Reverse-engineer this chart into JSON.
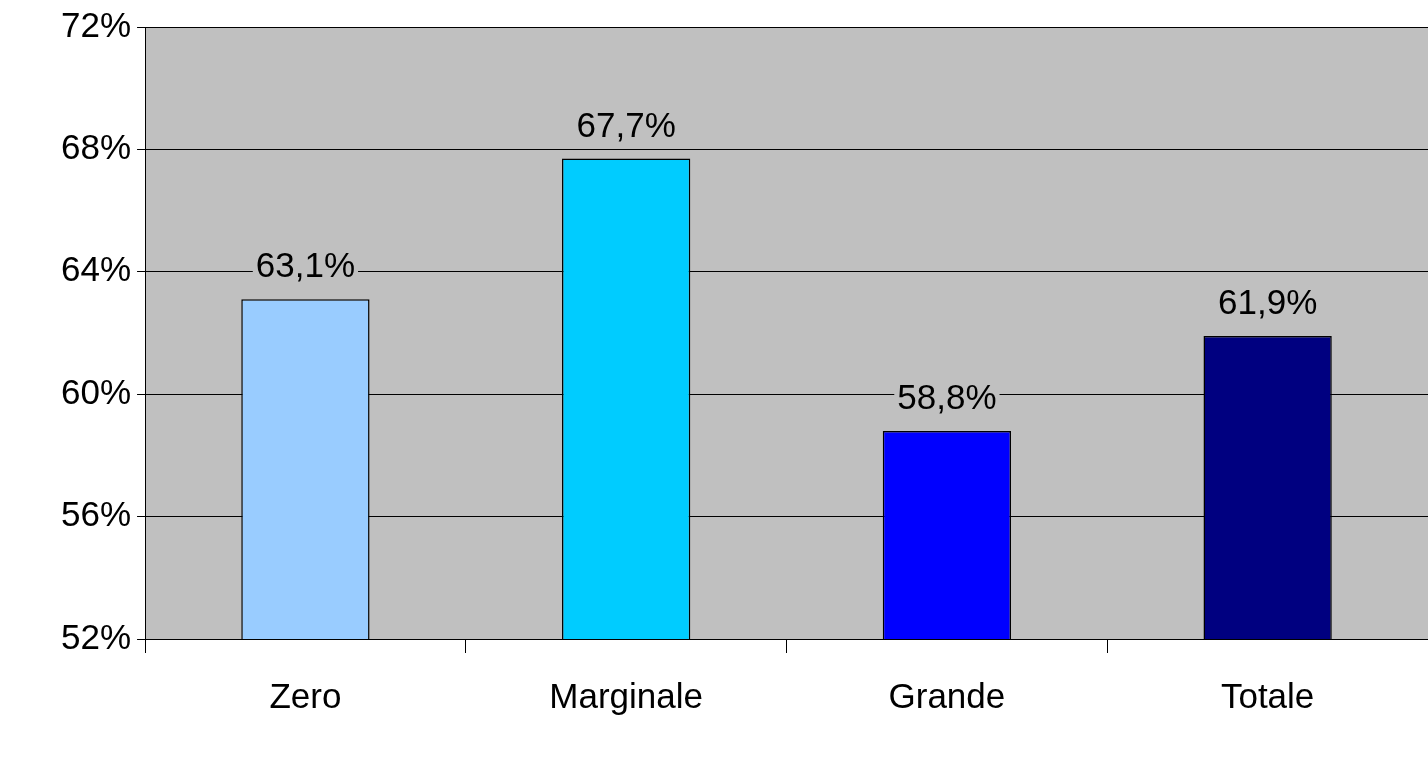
{
  "chart_data": {
    "type": "bar",
    "categories": [
      "Zero",
      "Marginale",
      "Grande",
      "Totale"
    ],
    "values": [
      63.1,
      67.7,
      58.8,
      61.9
    ],
    "colors": [
      "#99ccff",
      "#00ccff",
      "#0000ff",
      "#000080"
    ],
    "value_labels": [
      "63,1%",
      "67,7%",
      "58,8%",
      "61,9%"
    ],
    "ylim": [
      52,
      72
    ],
    "yticks": [
      {
        "value": 52,
        "label": "52%"
      },
      {
        "value": 56,
        "label": "56%"
      },
      {
        "value": 60,
        "label": "60%"
      },
      {
        "value": 64,
        "label": "64%"
      },
      {
        "value": 68,
        "label": "68%"
      },
      {
        "value": 72,
        "label": "72%"
      }
    ],
    "grid": "y"
  }
}
